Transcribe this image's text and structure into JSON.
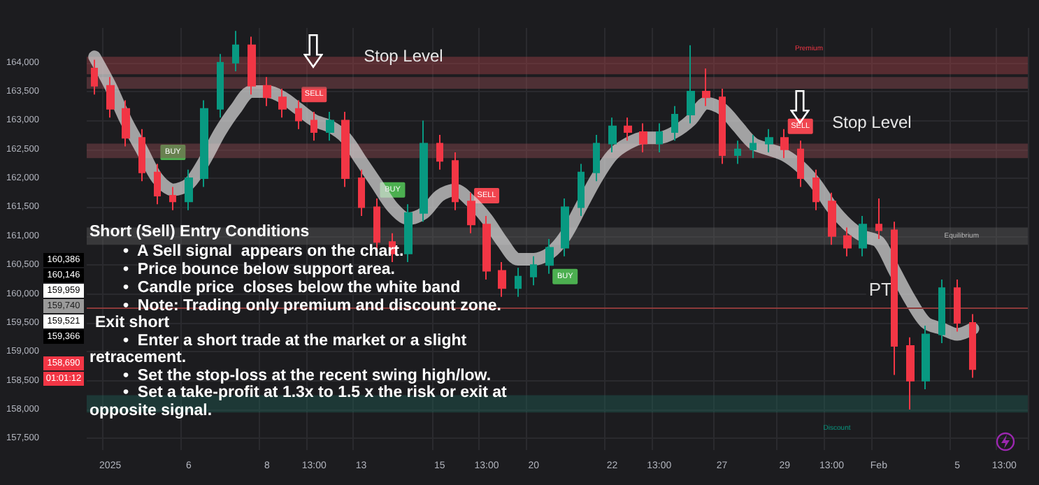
{
  "chart_data": {
    "type": "candlestick",
    "categories": [
      null,
      "2025",
      null,
      null,
      null,
      null,
      "6",
      null,
      null,
      null,
      null,
      "8",
      null,
      null,
      "13:00",
      null,
      null,
      "13",
      null,
      null,
      null,
      null,
      "15",
      null,
      null,
      "13:00",
      null,
      null,
      "20",
      null,
      null,
      null,
      null,
      "22",
      null,
      null,
      "13:00",
      null,
      null,
      null,
      "27",
      null,
      null,
      null,
      "29",
      null,
      null,
      "13:00",
      null,
      null,
      "Feb",
      null,
      null,
      null,
      null,
      "5",
      null,
      null,
      "13:00",
      null
    ],
    "series": [
      {
        "type": "candlestick",
        "ohlc": [
          [
            163900,
            164050,
            163450,
            163600
          ],
          [
            163600,
            163750,
            163050,
            163200
          ],
          [
            163200,
            163350,
            162550,
            162700
          ],
          [
            162700,
            162850,
            161950,
            162100
          ],
          [
            162100,
            162250,
            161550,
            161700
          ],
          [
            161700,
            161850,
            161450,
            161600
          ],
          [
            161600,
            162150,
            161450,
            162000
          ],
          [
            162000,
            163350,
            161850,
            163200
          ],
          [
            163200,
            164150,
            163050,
            164000
          ],
          [
            164000,
            164550,
            163850,
            164300
          ],
          [
            164300,
            164450,
            163450,
            163600
          ],
          [
            163600,
            163750,
            163250,
            163400
          ],
          [
            163400,
            163550,
            163050,
            163200
          ],
          [
            163200,
            163350,
            162850,
            163000
          ],
          [
            163000,
            163150,
            162650,
            162800
          ],
          [
            162800,
            163150,
            162650,
            163000
          ],
          [
            163000,
            163150,
            161850,
            162000
          ],
          [
            162000,
            162150,
            161350,
            161500
          ],
          [
            161500,
            161650,
            160750,
            160900
          ],
          [
            160900,
            161050,
            160550,
            160700
          ],
          [
            160700,
            161550,
            160550,
            161400
          ],
          [
            161400,
            163000,
            161250,
            162600
          ],
          [
            162600,
            162750,
            162150,
            162300
          ],
          [
            162300,
            162450,
            161450,
            161600
          ],
          [
            161600,
            161750,
            161050,
            161200
          ],
          [
            161200,
            161350,
            160250,
            160400
          ],
          [
            160400,
            160550,
            159950,
            160100
          ],
          [
            160100,
            160450,
            159950,
            160300
          ],
          [
            160300,
            160650,
            160150,
            160500
          ],
          [
            160500,
            160950,
            160350,
            160800
          ],
          [
            160800,
            161650,
            160650,
            161500
          ],
          [
            161500,
            162250,
            161350,
            162100
          ],
          [
            162100,
            162750,
            161950,
            162600
          ],
          [
            162600,
            163050,
            162450,
            162900
          ],
          [
            162900,
            163050,
            162650,
            162800
          ],
          [
            162800,
            162950,
            162450,
            162600
          ],
          [
            162600,
            162950,
            162450,
            162800
          ],
          [
            162800,
            163250,
            162650,
            163100
          ],
          [
            163100,
            164300,
            162950,
            163500
          ],
          [
            163500,
            163900,
            163250,
            163400
          ],
          [
            163400,
            163550,
            162250,
            162400
          ],
          [
            162400,
            162650,
            162250,
            162500
          ],
          [
            162500,
            162750,
            162350,
            162600
          ],
          [
            162600,
            162850,
            162450,
            162700
          ],
          [
            162700,
            162850,
            162350,
            162500
          ],
          [
            162500,
            162650,
            161850,
            162000
          ],
          [
            162000,
            162150,
            161450,
            161600
          ],
          [
            161600,
            161750,
            160850,
            161000
          ],
          [
            161000,
            161150,
            160650,
            160800
          ],
          [
            160800,
            161350,
            160650,
            161200
          ],
          [
            161200,
            161650,
            160950,
            161100
          ],
          [
            161100,
            161250,
            158600,
            159100
          ],
          [
            159100,
            159250,
            158000,
            158500
          ],
          [
            158500,
            159450,
            158350,
            159300
          ],
          [
            159300,
            160250,
            159150,
            160100
          ],
          [
            160100,
            160250,
            159350,
            159500
          ],
          [
            159500,
            159650,
            158550,
            158700
          ],
          null,
          null,
          null
        ],
        "colors": [
          "#f23645",
          "#f23645",
          "#f23645",
          "#f23645",
          "#f23645",
          "#f23645",
          "#089981",
          "#089981",
          "#089981",
          "#089981",
          "#f23645",
          "#f23645",
          "#f23645",
          "#f23645",
          "#f23645",
          "#089981",
          "#f23645",
          "#f23645",
          "#f23645",
          "#f23645",
          "#089981",
          "#089981",
          "#f23645",
          "#f23645",
          "#f23645",
          "#f23645",
          "#f23645",
          "#089981",
          "#089981",
          "#089981",
          "#089981",
          "#089981",
          "#089981",
          "#089981",
          "#f23645",
          "#f23645",
          "#089981",
          "#089981",
          "#089981",
          "#f23645",
          "#f23645",
          "#089981",
          "#089981",
          "#089981",
          "#f23645",
          "#f23645",
          "#f23645",
          "#f23645",
          "#f23645",
          "#089981",
          "#f23645",
          "#f23645",
          "#f23645",
          "#089981",
          "#089981",
          "#f23645",
          "#f23645",
          null,
          null,
          null
        ]
      },
      {
        "type": "line",
        "color": "#dcdcdc",
        "values": [
          164100,
          163600,
          163000,
          162500,
          162000,
          161800,
          161900,
          162300,
          162800,
          163200,
          163500,
          163500,
          163400,
          163200,
          163000,
          162900,
          162700,
          162300,
          161900,
          161500,
          161300,
          161400,
          161700,
          161800,
          161600,
          161300,
          160900,
          160600,
          160600,
          160700,
          161000,
          161500,
          162000,
          162400,
          162600,
          162700,
          162700,
          162800,
          163000,
          163300,
          163200,
          162900,
          162600,
          162500,
          162400,
          162200,
          161900,
          161500,
          161200,
          161000,
          160900,
          160400,
          159900,
          159500,
          159400,
          159300,
          159400,
          null,
          null,
          null
        ]
      }
    ],
    "ylim": [
      157300,
      164600
    ],
    "yticks": [
      {
        "value": 157500,
        "label": "157,500"
      },
      {
        "value": 158000,
        "label": "158,000"
      },
      {
        "value": 158500,
        "label": "158,500"
      },
      {
        "value": 159000,
        "label": "159,000"
      },
      {
        "value": 159500,
        "label": "159,500"
      },
      {
        "value": 160000,
        "label": "160,000"
      },
      {
        "value": 160500,
        "label": "160,500"
      },
      {
        "value": 161000,
        "label": "161,000"
      },
      {
        "value": 161500,
        "label": "161,500"
      },
      {
        "value": 162000,
        "label": "162,000"
      },
      {
        "value": 162500,
        "label": "162,500"
      },
      {
        "value": 163000,
        "label": "163,000"
      },
      {
        "value": 163500,
        "label": "163,500"
      },
      {
        "value": 164000,
        "label": "164,000"
      }
    ],
    "grid": true,
    "bands": [
      {
        "axis": "y",
        "from": 163550,
        "to": 163750,
        "label": "Stop Level",
        "color": "#8c4a4f"
      },
      {
        "axis": "y",
        "from": 163800,
        "to": 164100,
        "label": "Premium",
        "color": "#a04048"
      },
      {
        "axis": "y",
        "from": 162350,
        "to": 162600,
        "label": "Stop Level",
        "color": "#8c4a4f"
      },
      {
        "axis": "y",
        "from": 160850,
        "to": 161150,
        "label": "Equilibrium",
        "color": "#5a5a5a"
      },
      {
        "axis": "y",
        "from": 157950,
        "to": 158250,
        "label": "Discount",
        "color": "#1f5c52"
      }
    ],
    "ref_lines": [
      {
        "axis": "y",
        "value": 159750,
        "label": "PT",
        "color": "#8c3a3a"
      }
    ],
    "annotations": [
      "Short (Sell) Entry Conditions",
      "•  A Sell signal  appears on the chart.",
      "•  Price bounce below support area.",
      "•  Candle price  closes below the white band",
      "•  Note: Trading only premium and discount zone.",
      "Exit short",
      "•  Enter a short trade at the market or a slight",
      "retracement.",
      "•  Set the stop-loss at the recent swing high/low.",
      "•  Set a take-profit at 1.3x to 1.5 x the risk or exit at",
      "opposite signal.",
      "SELL",
      "BUY",
      "SELL",
      "BUY",
      "BUY",
      "SELL",
      "160,386",
      "160,146",
      "159,959",
      "159,740",
      "159,521",
      "159,366",
      "158,690",
      "01:01:12"
    ]
  }
}
